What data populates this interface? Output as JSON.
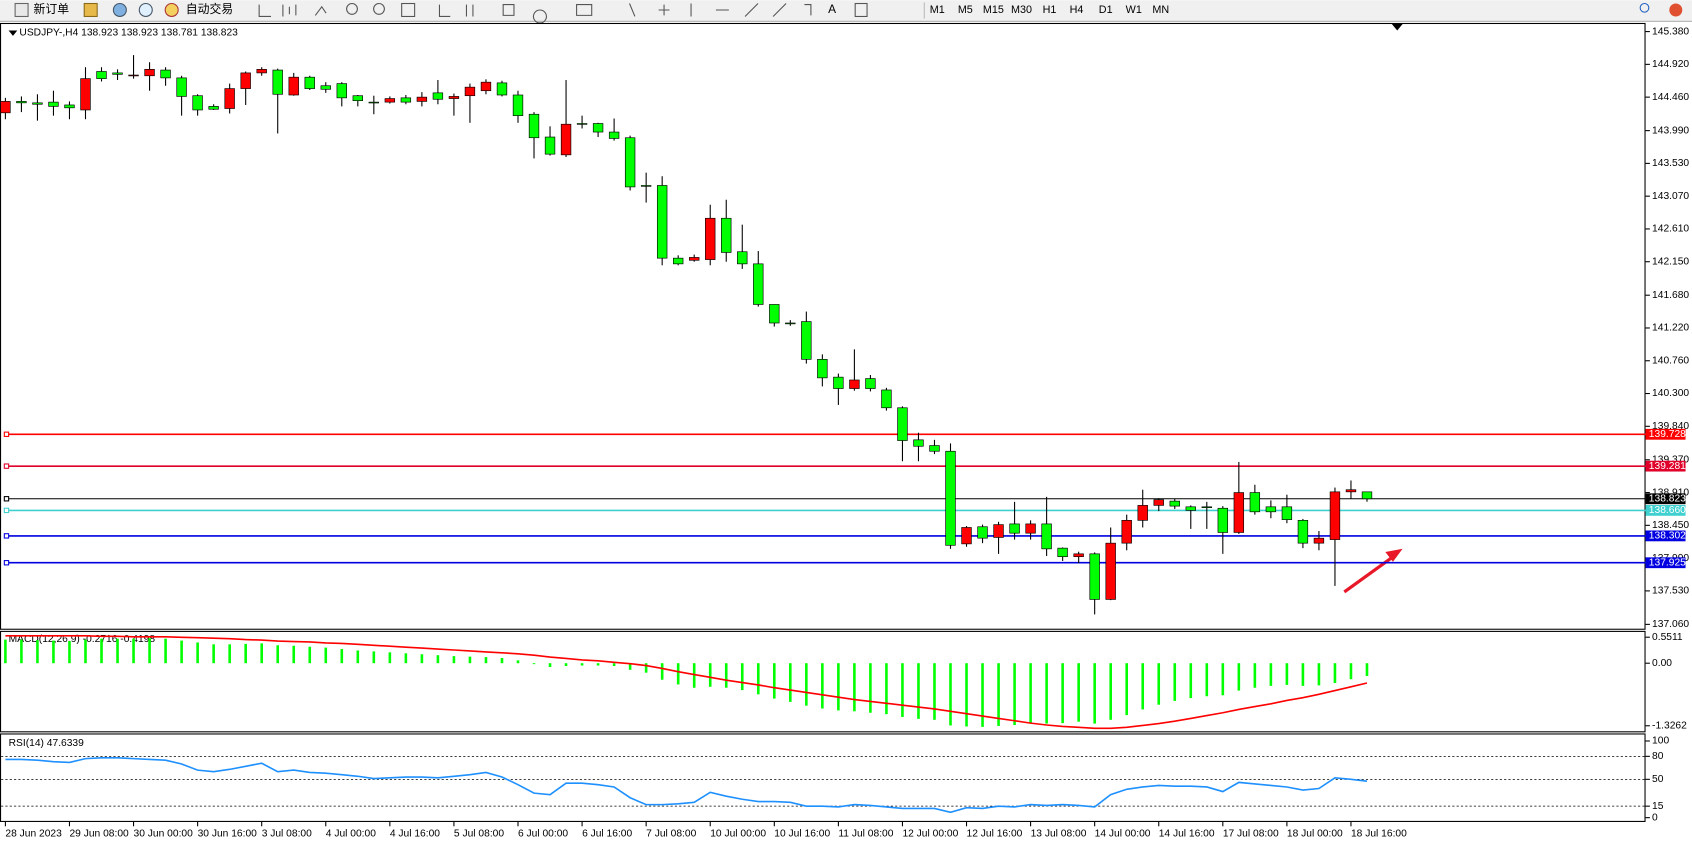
{
  "toolbar": {
    "buttons": [
      "新订单",
      "自动交易"
    ],
    "timeframes": [
      "M1",
      "M5",
      "M15",
      "M30",
      "H1",
      "H4",
      "D1",
      "W1",
      "MN"
    ]
  },
  "chart_data": [
    {
      "type": "candlestick",
      "title": "USDJPY-,H4  138.923 138.923 138.781 138.823",
      "categories": [
        "28 Jun 2023",
        null,
        null,
        null,
        "29 Jun 08:00",
        null,
        null,
        null,
        "30 Jun 00:00",
        null,
        null,
        null,
        "30 Jun 16:00",
        null,
        null,
        null,
        "3 Jul 08:00",
        null,
        null,
        null,
        "4 Jul 00:00",
        null,
        null,
        null,
        "4 Jul 16:00",
        null,
        null,
        null,
        "5 Jul 08:00",
        null,
        null,
        null,
        "6 Jul 00:00",
        null,
        null,
        null,
        "6 Jul 16:00",
        null,
        null,
        null,
        "7 Jul 08:00",
        null,
        null,
        null,
        "10 Jul 00:00",
        null,
        null,
        null,
        "10 Jul 16:00",
        null,
        null,
        null,
        "11 Jul 08:00",
        null,
        null,
        null,
        "12 Jul 00:00",
        null,
        null,
        null,
        "12 Jul 16:00",
        null,
        null,
        null,
        "13 Jul 08:00",
        null,
        null,
        null,
        "14 Jul 00:00",
        null,
        null,
        null,
        "14 Jul 16:00",
        null,
        null,
        null,
        "17 Jul 08:00",
        null,
        null,
        null,
        "18 Jul 00:00",
        null,
        null,
        null,
        "18 Jul 16:00",
        null
      ],
      "open": [
        144.24,
        144.4,
        144.38,
        144.39,
        144.35,
        144.28,
        144.82,
        144.8,
        144.76,
        144.76,
        144.84,
        144.73,
        144.48,
        144.33,
        144.3,
        144.58,
        144.8,
        144.84,
        144.49,
        144.74,
        144.62,
        144.65,
        144.48,
        144.39,
        144.39,
        144.45,
        144.4,
        144.52,
        144.44,
        144.48,
        144.55,
        144.66,
        144.49,
        144.22,
        143.9,
        143.65,
        144.09,
        144.09,
        143.97,
        143.89,
        143.22,
        143.22,
        142.2,
        142.17,
        142.18,
        142.76,
        142.29,
        142.12,
        141.55,
        141.29,
        141.31,
        140.78,
        140.53,
        140.37,
        140.51,
        140.35,
        140.1,
        139.65,
        139.57,
        139.49,
        138.19,
        138.43,
        138.28,
        138.47,
        138.34,
        138.47,
        138.13,
        138.01,
        138.05,
        137.41,
        138.2,
        138.52,
        138.73,
        138.79,
        138.71,
        138.71,
        138.69,
        138.35,
        138.91,
        138.71,
        138.71,
        138.52,
        138.2,
        138.25,
        138.92,
        138.92
      ],
      "high": [
        144.45,
        144.47,
        144.5,
        144.55,
        144.4,
        144.88,
        144.88,
        144.85,
        145.05,
        144.95,
        144.88,
        144.76,
        144.5,
        144.36,
        144.65,
        144.82,
        144.88,
        144.86,
        144.8,
        144.76,
        144.67,
        144.67,
        144.49,
        144.48,
        144.47,
        144.49,
        144.53,
        144.7,
        144.51,
        144.65,
        144.71,
        144.69,
        144.55,
        144.25,
        144.05,
        144.7,
        144.2,
        144.1,
        144.16,
        143.92,
        143.4,
        143.35,
        142.24,
        142.25,
        142.95,
        143.02,
        142.67,
        142.3,
        141.55,
        141.33,
        141.45,
        140.85,
        140.58,
        140.92,
        140.56,
        140.38,
        140.12,
        139.75,
        139.65,
        139.6,
        138.44,
        138.46,
        138.5,
        138.78,
        138.52,
        138.85,
        138.14,
        138.08,
        138.07,
        138.42,
        138.6,
        138.95,
        138.83,
        138.82,
        138.73,
        138.78,
        138.72,
        139.34,
        139.02,
        138.8,
        138.88,
        138.54,
        138.37,
        138.98,
        139.08,
        138.923
      ],
      "low": [
        144.15,
        144.25,
        144.13,
        144.2,
        144.15,
        144.15,
        144.68,
        144.7,
        144.72,
        144.55,
        144.62,
        144.2,
        144.2,
        144.28,
        144.23,
        144.35,
        144.76,
        143.95,
        144.48,
        144.56,
        144.52,
        144.33,
        144.33,
        144.22,
        144.37,
        144.36,
        144.33,
        144.36,
        144.2,
        144.1,
        144.5,
        144.47,
        144.1,
        143.6,
        143.64,
        143.62,
        144.02,
        143.9,
        143.85,
        143.15,
        142.98,
        142.1,
        142.1,
        142.15,
        142.1,
        142.15,
        142.05,
        141.52,
        141.24,
        141.25,
        140.72,
        140.4,
        140.14,
        140.34,
        140.33,
        140.06,
        139.35,
        139.35,
        139.45,
        138.12,
        138.15,
        138.2,
        138.05,
        138.25,
        138.25,
        138.02,
        137.95,
        137.92,
        137.2,
        137.4,
        138.1,
        138.42,
        138.65,
        138.68,
        138.4,
        138.4,
        138.05,
        138.33,
        138.6,
        138.55,
        138.48,
        138.13,
        138.1,
        137.6,
        138.82,
        138.781
      ],
      "close": [
        144.4,
        144.38,
        144.36,
        144.33,
        144.31,
        144.72,
        144.72,
        144.78,
        144.77,
        144.85,
        144.73,
        144.47,
        144.28,
        144.29,
        144.58,
        144.8,
        144.85,
        144.5,
        144.74,
        144.58,
        144.57,
        144.45,
        144.41,
        144.38,
        144.44,
        144.39,
        144.46,
        144.43,
        144.47,
        144.6,
        144.67,
        144.49,
        144.2,
        143.89,
        143.66,
        144.08,
        144.08,
        143.97,
        143.88,
        143.2,
        143.21,
        142.2,
        142.12,
        142.21,
        142.76,
        142.28,
        142.12,
        141.55,
        141.29,
        141.28,
        140.78,
        140.52,
        140.37,
        140.49,
        140.37,
        140.1,
        139.64,
        139.56,
        139.49,
        138.17,
        138.42,
        138.27,
        138.46,
        138.34,
        138.47,
        138.12,
        138.01,
        138.05,
        137.41,
        138.2,
        138.52,
        138.73,
        138.81,
        138.72,
        138.66,
        138.7,
        138.35,
        138.91,
        138.64,
        138.64,
        138.53,
        138.2,
        138.27,
        138.92,
        138.95,
        138.823
      ],
      "up_color": "#ff0000",
      "down_color": "#00ff00",
      "ylim": [
        137.06,
        145.38
      ],
      "yticks": [
        {
          "value": 145.38,
          "label": "145.380"
        },
        {
          "value": 144.92,
          "label": "144.920"
        },
        {
          "value": 144.46,
          "label": "144.460"
        },
        {
          "value": 143.99,
          "label": "143.990"
        },
        {
          "value": 143.53,
          "label": "143.530"
        },
        {
          "value": 143.07,
          "label": "143.070"
        },
        {
          "value": 142.61,
          "label": "142.610"
        },
        {
          "value": 142.15,
          "label": "142.150"
        },
        {
          "value": 141.68,
          "label": "141.680"
        },
        {
          "value": 141.22,
          "label": "141.220"
        },
        {
          "value": 140.76,
          "label": "140.760"
        },
        {
          "value": 140.3,
          "label": "140.300"
        },
        {
          "value": 139.84,
          "label": "139.840"
        },
        {
          "value": 139.37,
          "label": "139.370"
        },
        {
          "value": 138.91,
          "label": "138.910"
        },
        {
          "value": 138.45,
          "label": "138.450"
        },
        {
          "value": 137.99,
          "label": "137.990"
        },
        {
          "value": 137.53,
          "label": "137.530"
        },
        {
          "value": 137.06,
          "label": "137.060"
        }
      ],
      "levels": [
        {
          "value": 139.728,
          "color": "#ff0000"
        },
        {
          "value": 139.281,
          "color": "#e0002a"
        },
        {
          "value": 138.823,
          "color": "#000000"
        },
        {
          "value": 138.66,
          "label": "138.660",
          "color": "#40d0d0"
        },
        {
          "value": 138.302,
          "color": "#0000e0"
        },
        {
          "value": 137.925,
          "color": "#0000e0"
        }
      ]
    },
    {
      "type": "macd",
      "title": "MACD(12,26,9) -0.2716 -0.4198",
      "series": [
        {
          "kind": "bar",
          "color": "#00ff00",
          "values": [
            0.5,
            0.5,
            0.49,
            0.48,
            0.47,
            0.5,
            0.52,
            0.52,
            0.52,
            0.53,
            0.52,
            0.48,
            0.44,
            0.4,
            0.4,
            0.41,
            0.42,
            0.38,
            0.37,
            0.35,
            0.33,
            0.3,
            0.27,
            0.25,
            0.23,
            0.21,
            0.19,
            0.17,
            0.15,
            0.14,
            0.13,
            0.11,
            0.06,
            -0.02,
            -0.08,
            -0.06,
            -0.05,
            -0.05,
            -0.06,
            -0.14,
            -0.2,
            -0.35,
            -0.45,
            -0.52,
            -0.5,
            -0.52,
            -0.57,
            -0.66,
            -0.75,
            -0.82,
            -0.9,
            -0.96,
            -1.0,
            -1.02,
            -1.05,
            -1.08,
            -1.14,
            -1.18,
            -1.2,
            -1.32,
            -1.34,
            -1.35,
            -1.33,
            -1.31,
            -1.28,
            -1.28,
            -1.27,
            -1.24,
            -1.28,
            -1.2,
            -1.1,
            -0.98,
            -0.88,
            -0.8,
            -0.74,
            -0.7,
            -0.68,
            -0.58,
            -0.52,
            -0.48,
            -0.46,
            -0.48,
            -0.47,
            -0.42,
            -0.34,
            -0.2716
          ]
        },
        {
          "kind": "line",
          "color": "#ff0000",
          "values": [
            0.58,
            0.58,
            0.58,
            0.58,
            0.58,
            0.58,
            0.57,
            0.57,
            0.56,
            0.56,
            0.56,
            0.55,
            0.54,
            0.53,
            0.52,
            0.5,
            0.49,
            0.47,
            0.46,
            0.45,
            0.43,
            0.42,
            0.4,
            0.38,
            0.36,
            0.34,
            0.32,
            0.3,
            0.28,
            0.26,
            0.24,
            0.22,
            0.2,
            0.17,
            0.13,
            0.1,
            0.07,
            0.05,
            0.02,
            -0.01,
            -0.05,
            -0.11,
            -0.18,
            -0.24,
            -0.3,
            -0.36,
            -0.41,
            -0.46,
            -0.52,
            -0.57,
            -0.62,
            -0.67,
            -0.72,
            -0.77,
            -0.81,
            -0.85,
            -0.89,
            -0.93,
            -0.97,
            -1.02,
            -1.07,
            -1.12,
            -1.17,
            -1.22,
            -1.27,
            -1.31,
            -1.34,
            -1.36,
            -1.38,
            -1.38,
            -1.36,
            -1.32,
            -1.28,
            -1.23,
            -1.17,
            -1.11,
            -1.05,
            -0.98,
            -0.92,
            -0.86,
            -0.79,
            -0.73,
            -0.66,
            -0.58,
            -0.5,
            -0.4198
          ]
        }
      ],
      "ylim": [
        -1.42,
        0.64
      ],
      "yticks": [
        0.5511,
        {
          "value": 0,
          "label": "0.00"
        },
        -1.3262
      ]
    },
    {
      "type": "rsi",
      "title": "RSI(14) 47.6339",
      "color": "#1e90ff",
      "values": [
        76,
        76,
        75,
        73,
        72,
        77,
        78,
        78,
        77,
        76,
        75,
        70,
        62,
        60,
        63,
        67,
        71,
        60,
        62,
        59,
        58,
        56,
        54,
        51,
        52,
        53,
        53,
        52,
        54,
        56,
        59,
        53,
        43,
        32,
        30,
        45,
        45,
        43,
        40,
        26,
        17,
        17,
        18,
        20,
        33,
        28,
        24,
        21,
        21,
        20,
        15,
        15,
        14,
        17,
        16,
        14,
        12,
        12,
        12,
        7,
        13,
        12,
        15,
        14,
        17,
        16,
        17,
        16,
        14,
        30,
        37,
        40,
        42,
        41,
        41,
        40,
        34,
        46,
        44,
        42,
        40,
        36,
        38,
        52,
        50,
        47.6339
      ],
      "ylim": [
        0,
        100
      ],
      "yticks": [
        100,
        80,
        50,
        15,
        0
      ],
      "levels": [
        80,
        50,
        15
      ]
    }
  ]
}
